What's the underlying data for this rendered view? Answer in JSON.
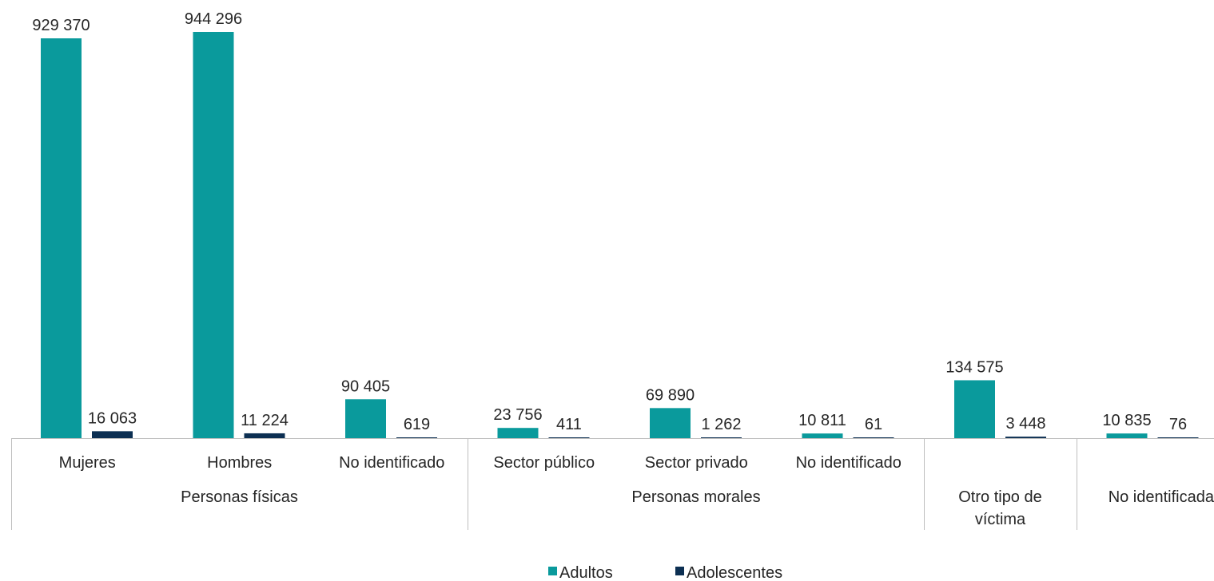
{
  "chart_data": {
    "type": "bar",
    "title": "",
    "xlabel": "",
    "ylabel": "",
    "ylim": [
      0,
      1000000
    ],
    "grid": false,
    "legend_position": "bottom",
    "categories": [
      "Mujeres",
      "Hombres",
      "No identificado",
      "Sector público",
      "Sector privado",
      "No identificado",
      "",
      ""
    ],
    "groups": [
      {
        "label": "Personas físicas",
        "categories": [
          "Mujeres",
          "Hombres",
          "No identificado"
        ]
      },
      {
        "label": "Personas morales",
        "categories": [
          "Sector público",
          "Sector privado",
          "No identificado"
        ]
      },
      {
        "label": "Otro tipo de víctima",
        "categories": [
          ""
        ]
      },
      {
        "label": "No identificada",
        "categories": [
          ""
        ]
      }
    ],
    "series": [
      {
        "name": "Adultos",
        "color": "#0a9a9c",
        "values": [
          929370,
          944296,
          90405,
          23756,
          69890,
          10811,
          134575,
          10835
        ],
        "labels": [
          "929 370",
          "944 296",
          "90 405",
          "23 756",
          "69 890",
          "10 811",
          "134 575",
          "10 835"
        ]
      },
      {
        "name": "Adolescentes",
        "color": "#0c2f52",
        "values": [
          16063,
          11224,
          619,
          411,
          1262,
          61,
          3448,
          76
        ],
        "labels": [
          "16 063",
          "11 224",
          "619",
          "411",
          "1 262",
          "61",
          "3 448",
          "76"
        ]
      }
    ]
  }
}
